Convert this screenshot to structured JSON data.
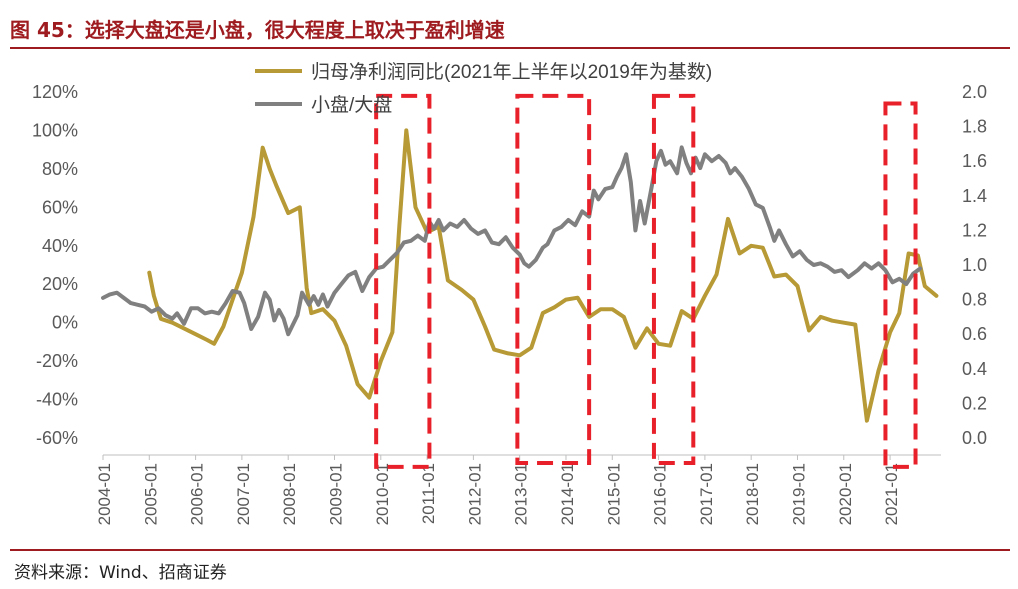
{
  "figure_title": "图 45：选择大盘还是小盘，很大程度上取决于盈利增速",
  "source": "资料来源：Wind、招商证券",
  "chart_data": {
    "type": "line",
    "x_labels": [
      "2004-01",
      "2005-01",
      "2006-01",
      "2007-01",
      "2008-01",
      "2009-01",
      "2010-01",
      "2011-01",
      "2012-01",
      "2013-01",
      "2014-01",
      "2015-01",
      "2016-01",
      "2017-01",
      "2018-01",
      "2019-01",
      "2020-01",
      "2021-01"
    ],
    "y_left": {
      "ticks": [
        "120%",
        "100%",
        "80%",
        "60%",
        "40%",
        "20%",
        "0%",
        "-20%",
        "-40%",
        "-60%"
      ],
      "range": [
        -60,
        120
      ]
    },
    "y_right": {
      "ticks": [
        "2.0",
        "1.8",
        "1.6",
        "1.4",
        "1.2",
        "1.0",
        "0.8",
        "0.6",
        "0.4",
        "0.2",
        "0.0"
      ],
      "range": [
        0,
        2.0
      ]
    },
    "legend_position": "top",
    "grid": false,
    "series": [
      {
        "name": "归母净利润同比(2021年上半年以2019年为基数)",
        "axis": "left",
        "color": "#b79a35",
        "points": [
          [
            2005.0,
            26
          ],
          [
            2005.1,
            14
          ],
          [
            2005.25,
            2
          ],
          [
            2005.5,
            0
          ],
          [
            2005.75,
            -3
          ],
          [
            2006.0,
            -6
          ],
          [
            2006.25,
            -9
          ],
          [
            2006.4,
            -11
          ],
          [
            2006.6,
            -2
          ],
          [
            2006.8,
            12
          ],
          [
            2007.0,
            26
          ],
          [
            2007.25,
            55
          ],
          [
            2007.45,
            91
          ],
          [
            2007.6,
            80
          ],
          [
            2007.75,
            71
          ],
          [
            2008.0,
            57
          ],
          [
            2008.25,
            60
          ],
          [
            2008.4,
            18
          ],
          [
            2008.5,
            5
          ],
          [
            2008.75,
            7
          ],
          [
            2009.0,
            1
          ],
          [
            2009.25,
            -12
          ],
          [
            2009.5,
            -32
          ],
          [
            2009.75,
            -39
          ],
          [
            2010.0,
            -20
          ],
          [
            2010.25,
            -5
          ],
          [
            2010.4,
            50
          ],
          [
            2010.55,
            100
          ],
          [
            2010.75,
            60
          ],
          [
            2011.0,
            47
          ],
          [
            2011.25,
            50
          ],
          [
            2011.45,
            22
          ],
          [
            2011.75,
            17
          ],
          [
            2012.0,
            12
          ],
          [
            2012.25,
            -2
          ],
          [
            2012.45,
            -14
          ],
          [
            2012.75,
            -16
          ],
          [
            2013.0,
            -17
          ],
          [
            2013.25,
            -13
          ],
          [
            2013.5,
            5
          ],
          [
            2013.75,
            8
          ],
          [
            2014.0,
            12
          ],
          [
            2014.25,
            13
          ],
          [
            2014.5,
            3
          ],
          [
            2014.75,
            7
          ],
          [
            2015.0,
            7
          ],
          [
            2015.25,
            3
          ],
          [
            2015.5,
            -13
          ],
          [
            2015.75,
            -3
          ],
          [
            2016.0,
            -11
          ],
          [
            2016.25,
            -12
          ],
          [
            2016.5,
            6
          ],
          [
            2016.75,
            2
          ],
          [
            2017.0,
            14
          ],
          [
            2017.25,
            25
          ],
          [
            2017.5,
            54
          ],
          [
            2017.75,
            36
          ],
          [
            2018.0,
            40
          ],
          [
            2018.25,
            39
          ],
          [
            2018.5,
            24
          ],
          [
            2018.75,
            25
          ],
          [
            2019.0,
            19
          ],
          [
            2019.25,
            -4
          ],
          [
            2019.5,
            3
          ],
          [
            2019.75,
            1
          ],
          [
            2020.0,
            0
          ],
          [
            2020.25,
            -1
          ],
          [
            2020.5,
            -51
          ],
          [
            2020.75,
            -25
          ],
          [
            2021.0,
            -5
          ],
          [
            2021.2,
            5
          ],
          [
            2021.4,
            36
          ],
          [
            2021.6,
            35
          ],
          [
            2021.75,
            19
          ],
          [
            2022.0,
            14
          ]
        ]
      },
      {
        "name": "小盘/大盘",
        "axis": "right",
        "color": "#808080",
        "points": [
          [
            2004.0,
            0.81
          ],
          [
            2004.15,
            0.83
          ],
          [
            2004.3,
            0.84
          ],
          [
            2004.45,
            0.81
          ],
          [
            2004.6,
            0.78
          ],
          [
            2004.75,
            0.77
          ],
          [
            2004.9,
            0.76
          ],
          [
            2005.05,
            0.73
          ],
          [
            2005.2,
            0.75
          ],
          [
            2005.35,
            0.71
          ],
          [
            2005.5,
            0.69
          ],
          [
            2005.6,
            0.72
          ],
          [
            2005.75,
            0.66
          ],
          [
            2005.9,
            0.75
          ],
          [
            2006.05,
            0.75
          ],
          [
            2006.2,
            0.72
          ],
          [
            2006.35,
            0.73
          ],
          [
            2006.5,
            0.72
          ],
          [
            2006.65,
            0.78
          ],
          [
            2006.8,
            0.85
          ],
          [
            2006.95,
            0.84
          ],
          [
            2007.05,
            0.78
          ],
          [
            2007.2,
            0.63
          ],
          [
            2007.35,
            0.7
          ],
          [
            2007.5,
            0.84
          ],
          [
            2007.6,
            0.8
          ],
          [
            2007.7,
            0.68
          ],
          [
            2007.8,
            0.74
          ],
          [
            2007.9,
            0.69
          ],
          [
            2008.0,
            0.6
          ],
          [
            2008.2,
            0.71
          ],
          [
            2008.3,
            0.84
          ],
          [
            2008.45,
            0.77
          ],
          [
            2008.55,
            0.82
          ],
          [
            2008.65,
            0.77
          ],
          [
            2008.75,
            0.83
          ],
          [
            2008.85,
            0.76
          ],
          [
            2009.0,
            0.84
          ],
          [
            2009.15,
            0.89
          ],
          [
            2009.3,
            0.94
          ],
          [
            2009.45,
            0.96
          ],
          [
            2009.6,
            0.85
          ],
          [
            2009.75,
            0.93
          ],
          [
            2009.9,
            0.98
          ],
          [
            2010.05,
            0.99
          ],
          [
            2010.2,
            1.03
          ],
          [
            2010.35,
            1.07
          ],
          [
            2010.5,
            1.13
          ],
          [
            2010.65,
            1.14
          ],
          [
            2010.8,
            1.17
          ],
          [
            2010.95,
            1.14
          ],
          [
            2011.05,
            1.25
          ],
          [
            2011.15,
            1.21
          ],
          [
            2011.25,
            1.26
          ],
          [
            2011.35,
            1.2
          ],
          [
            2011.5,
            1.24
          ],
          [
            2011.65,
            1.22
          ],
          [
            2011.8,
            1.26
          ],
          [
            2011.95,
            1.21
          ],
          [
            2012.1,
            1.18
          ],
          [
            2012.25,
            1.2
          ],
          [
            2012.4,
            1.13
          ],
          [
            2012.55,
            1.12
          ],
          [
            2012.7,
            1.16
          ],
          [
            2012.85,
            1.1
          ],
          [
            2013.0,
            1.06
          ],
          [
            2013.1,
            1.01
          ],
          [
            2013.2,
            0.99
          ],
          [
            2013.35,
            1.03
          ],
          [
            2013.5,
            1.1
          ],
          [
            2013.6,
            1.12
          ],
          [
            2013.75,
            1.2
          ],
          [
            2013.9,
            1.22
          ],
          [
            2014.05,
            1.26
          ],
          [
            2014.2,
            1.23
          ],
          [
            2014.35,
            1.31
          ],
          [
            2014.5,
            1.28
          ],
          [
            2014.6,
            1.43
          ],
          [
            2014.7,
            1.38
          ],
          [
            2014.85,
            1.44
          ],
          [
            2015.0,
            1.45
          ],
          [
            2015.1,
            1.51
          ],
          [
            2015.2,
            1.56
          ],
          [
            2015.3,
            1.64
          ],
          [
            2015.4,
            1.48
          ],
          [
            2015.5,
            1.2
          ],
          [
            2015.6,
            1.37
          ],
          [
            2015.7,
            1.24
          ],
          [
            2015.85,
            1.45
          ],
          [
            2015.95,
            1.6
          ],
          [
            2016.05,
            1.66
          ],
          [
            2016.15,
            1.58
          ],
          [
            2016.25,
            1.6
          ],
          [
            2016.4,
            1.53
          ],
          [
            2016.5,
            1.68
          ],
          [
            2016.6,
            1.59
          ],
          [
            2016.7,
            1.53
          ],
          [
            2016.8,
            1.62
          ],
          [
            2016.9,
            1.56
          ],
          [
            2017.0,
            1.64
          ],
          [
            2017.15,
            1.6
          ],
          [
            2017.3,
            1.63
          ],
          [
            2017.45,
            1.59
          ],
          [
            2017.55,
            1.53
          ],
          [
            2017.65,
            1.56
          ],
          [
            2017.8,
            1.51
          ],
          [
            2017.95,
            1.44
          ],
          [
            2018.1,
            1.35
          ],
          [
            2018.25,
            1.33
          ],
          [
            2018.4,
            1.22
          ],
          [
            2018.5,
            1.14
          ],
          [
            2018.6,
            1.2
          ],
          [
            2018.75,
            1.12
          ],
          [
            2018.9,
            1.05
          ],
          [
            2019.05,
            1.08
          ],
          [
            2019.2,
            1.03
          ],
          [
            2019.35,
            1.0
          ],
          [
            2019.5,
            1.01
          ],
          [
            2019.65,
            0.99
          ],
          [
            2019.8,
            0.96
          ],
          [
            2019.95,
            0.97
          ],
          [
            2020.1,
            0.93
          ],
          [
            2020.3,
            0.97
          ],
          [
            2020.45,
            1.01
          ],
          [
            2020.6,
            0.98
          ],
          [
            2020.75,
            1.01
          ],
          [
            2020.9,
            0.97
          ],
          [
            2021.05,
            0.9
          ],
          [
            2021.2,
            0.92
          ],
          [
            2021.35,
            0.89
          ],
          [
            2021.5,
            0.95
          ],
          [
            2021.65,
            0.98
          ]
        ]
      }
    ],
    "highlight_boxes": [
      {
        "x_from": 2009.9,
        "x_to": 2011.05,
        "y_from": 118,
        "y_to": -75
      },
      {
        "x_from": 2012.95,
        "x_to": 2014.5,
        "y_from": 118,
        "y_to": -73
      },
      {
        "x_from": 2015.9,
        "x_to": 2016.75,
        "y_from": 118,
        "y_to": -73
      },
      {
        "x_from": 2020.9,
        "x_to": 2021.55,
        "y_from": 114,
        "y_to": -75
      }
    ],
    "highlight_color": "#e8202a"
  }
}
